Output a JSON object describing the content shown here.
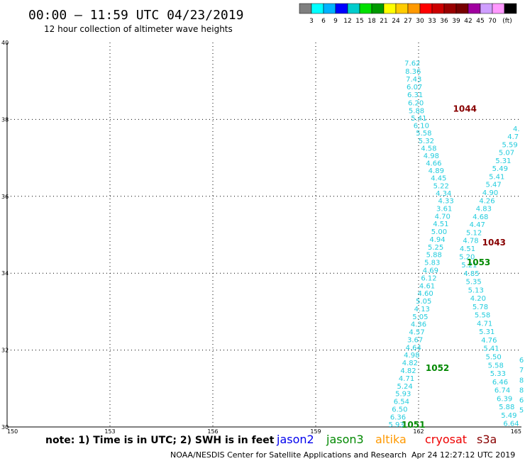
{
  "header": {
    "title": "00:00 – 11:59 UTC 04/23/2019",
    "subtitle": "12 hour collection of altimeter wave heights"
  },
  "colorbar": {
    "unit": "(ft)",
    "colors": [
      "#7f7f7f",
      "#00ffff",
      "#00b2ff",
      "#0000ff",
      "#00cccc",
      "#00e000",
      "#009900",
      "#ffff00",
      "#ffcc00",
      "#ff9900",
      "#ff0000",
      "#cc0000",
      "#990000",
      "#770000",
      "#a0009f",
      "#cf9fff",
      "#ff99ff",
      "#000000"
    ],
    "labels": [
      "3",
      "6",
      "9",
      "12",
      "15",
      "18",
      "21",
      "24",
      "27",
      "30",
      "33",
      "36",
      "39",
      "42",
      "45",
      "70"
    ]
  },
  "footer": {
    "note": "note:  1) Time is in UTC;  2) SWH is in feet",
    "credit": "NOAA/NESDIS Center for Satellite Applications and Research",
    "timestamp": "Apr 24 12:27:12 UTC 2019"
  },
  "satellites": [
    {
      "name": "jason2",
      "color": "#0000ee"
    },
    {
      "name": "jason3",
      "color": "#008800"
    },
    {
      "name": "altika",
      "color": "#ff9900"
    },
    {
      "name": "cryosat",
      "color": "#ee0000"
    },
    {
      "name": "s3a",
      "color": "#880000"
    }
  ],
  "chart_data": {
    "type": "scatter",
    "title": "00:00 – 11:59 UTC 04/23/2019",
    "xlim": [
      150,
      165
    ],
    "ylim": [
      30,
      40
    ],
    "x_ticks": [
      "150",
      "153",
      "156",
      "159",
      "162",
      "165"
    ],
    "y_ticks": [
      "30",
      "32",
      "34",
      "36",
      "38",
      "40"
    ],
    "grid": true,
    "point_color": "#22ccdd",
    "tracks": [
      {
        "values": [
          "7.62",
          "8.36",
          "7.43",
          "6.07",
          "6.31",
          "6.20",
          "5.88",
          "5.41",
          "6.10",
          "5.58",
          "5.32",
          "4.58",
          "4.98",
          "4.66",
          "4.89",
          "4.45",
          "5.22",
          "4.34",
          "4.33",
          "3.61",
          "4.70",
          "4.51",
          "5.00",
          "4.94",
          "5.25",
          "5.88",
          "5.83",
          "4.69",
          "6.12",
          "4.61",
          "4.60",
          "5.05",
          "4.13",
          "5.05",
          "4.36",
          "4.57",
          "3.67",
          "4.64",
          "4.98",
          "4.82",
          "4.82",
          "4.71",
          "5.24",
          "5.93",
          "6.54",
          "6.50",
          "6.36",
          "5.93"
        ],
        "start": [
          161.82,
          39.47
        ],
        "end": [
          161.35,
          30.07
        ],
        "knots": [
          [
            161.82,
            39.47
          ],
          [
            161.94,
            38.23
          ],
          [
            162.8,
            35.9
          ],
          [
            161.35,
            30.07
          ]
        ]
      },
      {
        "values": [
          "4.",
          "4.7",
          "5.59",
          "5.07",
          "5.31",
          "5.49",
          "5.41",
          "5.47",
          "4.90",
          "4.26",
          "4.83",
          "4.68",
          "4.47",
          "5.12",
          "4.78",
          "4.51",
          "5.20",
          "5.21",
          "4.85",
          "5.35",
          "5.13",
          "4.20",
          "5.78",
          "5.58",
          "4.71",
          "5.31",
          "4.76",
          "5.41",
          "5.50",
          "5.58",
          "5.33",
          "6.46",
          "6.74",
          "6.39",
          "5.88",
          "5.49",
          "6.64"
        ],
        "start": [
          164.85,
          37.77
        ],
        "end": [
          164.7,
          30.1
        ],
        "knots": [
          [
            164.85,
            37.77
          ],
          [
            163.38,
            34.55
          ],
          [
            164.7,
            30.1
          ]
        ]
      },
      {
        "values": [
          "6",
          "7",
          "8",
          "8",
          "6",
          "5"
        ],
        "start": [
          165.0,
          31.75
        ],
        "end": [
          165.0,
          30.45
        ],
        "knots": [
          [
            165.0,
            31.75
          ],
          [
            165.0,
            30.45
          ]
        ]
      }
    ],
    "annotations": [
      {
        "text": "1044",
        "x": 163.35,
        "y": 38.29,
        "color": "#880000"
      },
      {
        "text": "1043",
        "x": 164.2,
        "y": 34.82,
        "color": "#880000"
      },
      {
        "text": "1053",
        "x": 163.75,
        "y": 34.3,
        "color": "#008800"
      },
      {
        "text": "1052",
        "x": 162.55,
        "y": 31.55,
        "color": "#008800"
      },
      {
        "text": "1051",
        "x": 161.85,
        "y": 30.07,
        "color": "#008800"
      }
    ]
  }
}
